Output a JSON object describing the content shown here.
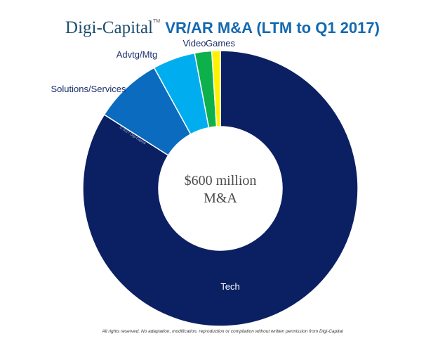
{
  "title": {
    "brand": "Digi-Capital",
    "trademark": "TM",
    "main": "VR/AR M&A (LTM to Q1 2017)"
  },
  "center_label": {
    "line1": "$600 million",
    "line2": "M&A"
  },
  "watermark": "© 2017 Digi-Capital",
  "footer": "All rights reserved. No adaptation, modification, reproduction or compilation without written permission from Digi-Capital",
  "chart_data": {
    "type": "pie",
    "variant": "donut",
    "title": "Digi-Capital VR/AR M&A (LTM to Q1 2017)",
    "total_label": "$600 million M&A",
    "total_usd_millions": 600,
    "unit": "percent of total (estimated from slice angles)",
    "start_angle": "12 o'clock",
    "direction": "counter-clockwise from Tech",
    "slices": [
      {
        "name": "Tech",
        "value": 84,
        "color": "#0b2062"
      },
      {
        "name": "Solutions/Services",
        "value": 8,
        "color": "#0a6bbf"
      },
      {
        "name": "Advtg/Mtg",
        "value": 5,
        "color": "#00aeef"
      },
      {
        "name": "Video",
        "value": 2,
        "color": "#0db14b"
      },
      {
        "name": "Games",
        "value": 1,
        "color": "#fff200"
      }
    ],
    "legend": "none (labels placed beside slices)"
  }
}
